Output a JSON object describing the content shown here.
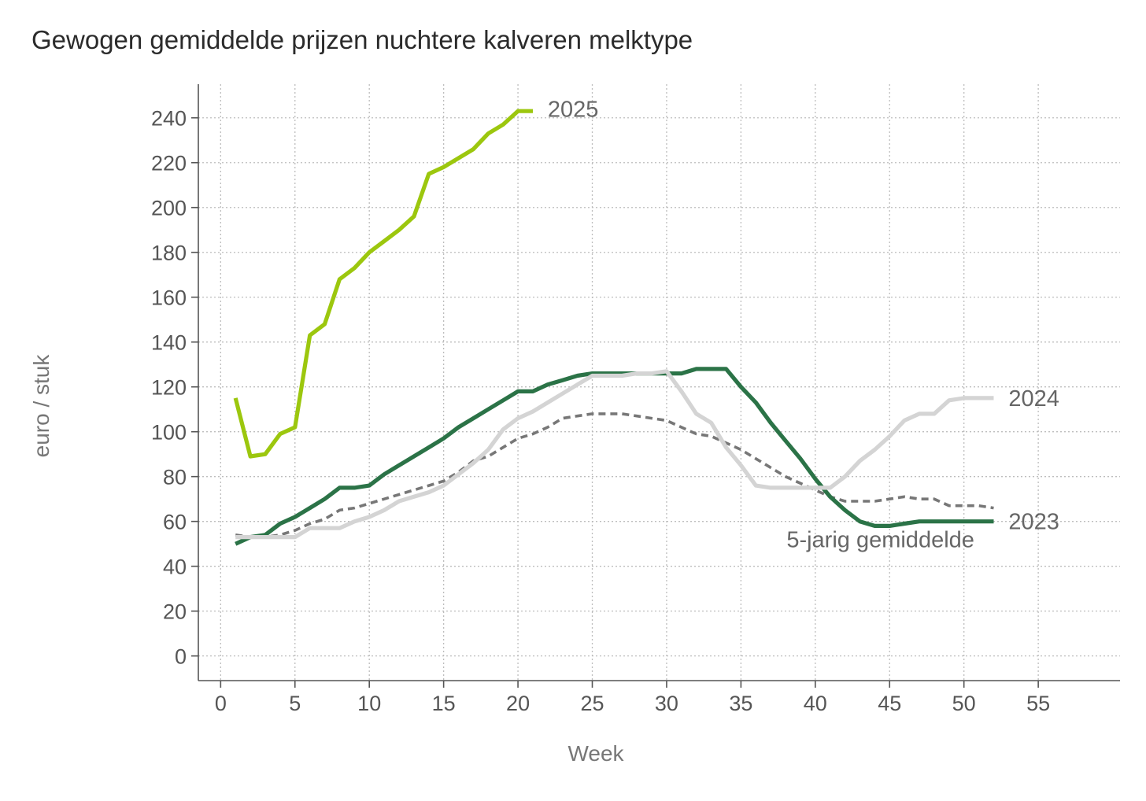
{
  "chart_data": {
    "type": "line",
    "title": "Gewogen gemiddelde prijzen nuchtere kalveren melktype",
    "xlabel": "Week",
    "ylabel": "euro / stuk",
    "xlim": [
      -1.5,
      60.5
    ],
    "ylim": [
      -11,
      255
    ],
    "x_ticks": [
      0,
      5,
      10,
      15,
      20,
      25,
      30,
      35,
      40,
      45,
      50,
      55
    ],
    "y_ticks": [
      0,
      20,
      40,
      60,
      80,
      100,
      120,
      140,
      160,
      180,
      200,
      220,
      240
    ],
    "grid": true,
    "series": [
      {
        "name": "5-jarig gemiddelde",
        "color": "#777777",
        "dashed": true,
        "x": [
          1,
          2,
          3,
          4,
          5,
          6,
          7,
          8,
          9,
          10,
          11,
          12,
          13,
          14,
          15,
          16,
          17,
          18,
          19,
          20,
          21,
          22,
          23,
          24,
          25,
          26,
          27,
          28,
          29,
          30,
          31,
          32,
          33,
          34,
          35,
          36,
          37,
          38,
          39,
          40,
          41,
          42,
          43,
          44,
          45,
          46,
          47,
          48,
          49,
          50,
          51,
          52
        ],
        "values": [
          54,
          53,
          53,
          54,
          56,
          59,
          61,
          65,
          66,
          68,
          70,
          72,
          74,
          76,
          78,
          82,
          87,
          89,
          93,
          97,
          99,
          102,
          106,
          107,
          108,
          108,
          108,
          107,
          106,
          105,
          102,
          99,
          98,
          95,
          92,
          88,
          84,
          80,
          77,
          74,
          71,
          69,
          69,
          69,
          70,
          71,
          70,
          70,
          67,
          67,
          67,
          66
        ]
      },
      {
        "name": "2023",
        "color": "#2b7347",
        "dashed": false,
        "x": [
          1,
          2,
          3,
          4,
          5,
          6,
          7,
          8,
          9,
          10,
          11,
          12,
          13,
          14,
          15,
          16,
          17,
          18,
          19,
          20,
          21,
          22,
          23,
          24,
          25,
          26,
          27,
          28,
          29,
          30,
          31,
          32,
          33,
          34,
          35,
          36,
          37,
          38,
          39,
          40,
          41,
          42,
          43,
          44,
          45,
          46,
          47,
          48,
          49,
          50,
          51,
          52
        ],
        "values": [
          50,
          53,
          54,
          59,
          62,
          66,
          70,
          75,
          75,
          76,
          81,
          85,
          89,
          93,
          97,
          102,
          106,
          110,
          114,
          118,
          118,
          121,
          123,
          125,
          126,
          126,
          126,
          126,
          126,
          126,
          126,
          128,
          128,
          128,
          120,
          113,
          104,
          96,
          88,
          79,
          71,
          65,
          60,
          58,
          58,
          59,
          60,
          60,
          60,
          60,
          60,
          60
        ]
      },
      {
        "name": "2024",
        "color": "#d4d4d4",
        "dashed": false,
        "x": [
          1,
          2,
          3,
          4,
          5,
          6,
          7,
          8,
          9,
          10,
          11,
          12,
          13,
          14,
          15,
          16,
          17,
          18,
          19,
          20,
          21,
          22,
          23,
          24,
          25,
          26,
          27,
          28,
          29,
          30,
          31,
          32,
          33,
          34,
          35,
          36,
          37,
          38,
          39,
          40,
          41,
          42,
          43,
          44,
          45,
          46,
          47,
          48,
          49,
          50,
          51,
          52
        ],
        "values": [
          53,
          53,
          53,
          53,
          53,
          57,
          57,
          57,
          60,
          62,
          65,
          69,
          71,
          73,
          76,
          81,
          86,
          92,
          101,
          106,
          109,
          113,
          117,
          121,
          125,
          125,
          125,
          126,
          126,
          127,
          118,
          108,
          104,
          93,
          85,
          76,
          75,
          75,
          75,
          75,
          75,
          80,
          87,
          92,
          98,
          105,
          108,
          108,
          114,
          115,
          115,
          115
        ]
      },
      {
        "name": "2025",
        "color": "#9cc70e",
        "dashed": false,
        "x": [
          1,
          2,
          3,
          4,
          5,
          6,
          7,
          8,
          9,
          10,
          11,
          12,
          13,
          14,
          15,
          16,
          17,
          18,
          19,
          20,
          21
        ],
        "values": [
          115,
          89,
          90,
          99,
          102,
          143,
          148,
          168,
          173,
          180,
          185,
          190,
          196,
          215,
          218,
          222,
          226,
          233,
          237,
          243,
          243
        ]
      }
    ],
    "annotations": [
      {
        "text": "2025",
        "x": 22,
        "y": 244,
        "anchor": "start",
        "series": "2025"
      },
      {
        "text": "2024",
        "x": 53,
        "y": 115,
        "anchor": "start",
        "series": "2024"
      },
      {
        "text": "2023",
        "x": 53,
        "y": 60,
        "anchor": "start",
        "series": "2023"
      },
      {
        "text": "5-jarig gemiddelde",
        "x": 50.7,
        "y": 52,
        "anchor": "end",
        "series": "5-jarig gemiddelde"
      }
    ]
  }
}
